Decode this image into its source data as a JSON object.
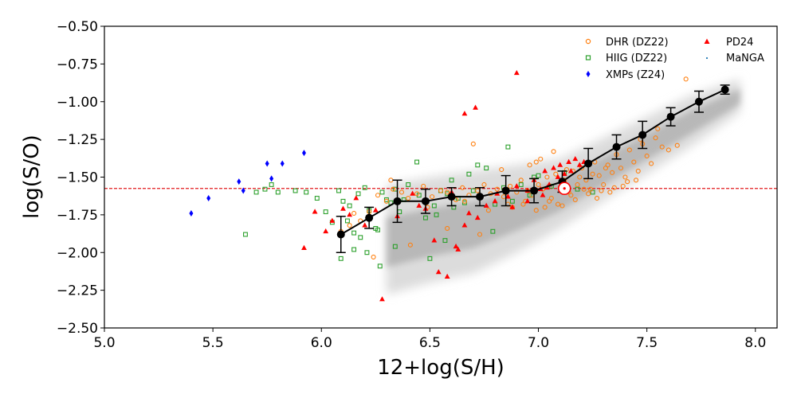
{
  "chart_data": {
    "type": "scatter",
    "xlabel": "12+log(S/H)",
    "ylabel": "log(S/O)",
    "xlim": [
      5.0,
      8.1
    ],
    "ylim": [
      -2.5,
      -0.5
    ],
    "xticks": [
      5.0,
      5.5,
      6.0,
      6.5,
      7.0,
      7.5,
      8.0
    ],
    "xtick_labels": [
      "5.0",
      "5.5",
      "6.0",
      "6.5",
      "7.0",
      "7.5",
      "8.0"
    ],
    "yticks": [
      -2.5,
      -2.25,
      -2.0,
      -1.75,
      -1.5,
      -1.25,
      -1.0,
      -0.75,
      -0.5
    ],
    "ytick_labels": [
      "−2.50",
      "−2.25",
      "−2.00",
      "−1.75",
      "−1.50",
      "−1.25",
      "−1.00",
      "−0.75",
      "−0.50"
    ],
    "reference_line": {
      "y": -1.575,
      "color": "#e31a1c",
      "style": "dashed"
    },
    "solar_symbol": {
      "x": 7.12,
      "y": -1.575
    },
    "legend": [
      {
        "label": "DHR (DZ22)",
        "marker": "open-circle",
        "color": "#ff7f0e"
      },
      {
        "label": "PD24",
        "marker": "triangle",
        "color": "#ff0000"
      },
      {
        "label": "HIIG (DZ22)",
        "marker": "open-square",
        "color": "#2ca02c"
      },
      {
        "label": "MaNGA",
        "marker": "dot",
        "color": "#1f77b4"
      },
      {
        "label": "XMPs (Z24)",
        "marker": "diamond",
        "color": "#0000ff"
      }
    ],
    "density_band": {
      "name": "MaNGA",
      "x": [
        6.3,
        6.5,
        6.7,
        6.9,
        7.1,
        7.3,
        7.5,
        7.7,
        7.93
      ],
      "y_low": [
        -2.28,
        -2.2,
        -2.14,
        -2.0,
        -1.84,
        -1.66,
        -1.48,
        -1.3,
        -1.07
      ],
      "y_high": [
        -1.55,
        -1.5,
        -1.46,
        -1.42,
        -1.38,
        -1.24,
        -1.1,
        -0.96,
        -0.85
      ]
    },
    "series": [
      {
        "name": "Binned median",
        "type": "line-errorbar",
        "color": "#000000",
        "x": [
          6.09,
          6.22,
          6.35,
          6.48,
          6.6,
          6.73,
          6.85,
          6.98,
          7.11,
          7.23,
          7.36,
          7.48,
          7.61,
          7.74,
          7.86
        ],
        "y": [
          -1.88,
          -1.77,
          -1.66,
          -1.66,
          -1.63,
          -1.63,
          -1.59,
          -1.59,
          -1.53,
          -1.41,
          -1.3,
          -1.22,
          -1.1,
          -1.0,
          -0.92
        ],
        "err": [
          0.12,
          0.07,
          0.14,
          0.08,
          0.06,
          0.06,
          0.1,
          0.08,
          0.07,
          0.1,
          0.08,
          0.09,
          0.06,
          0.07,
          0.03
        ]
      },
      {
        "name": "XMPs (Z24)",
        "x": [
          5.4,
          5.48,
          5.62,
          5.64,
          5.75,
          5.77,
          5.82,
          5.92
        ],
        "y": [
          -1.74,
          -1.64,
          -1.53,
          -1.59,
          -1.41,
          -1.51,
          -1.41,
          -1.34
        ]
      },
      {
        "name": "PD24",
        "x": [
          6.9,
          6.71,
          6.66,
          6.45,
          6.28,
          5.92,
          5.97,
          6.05,
          6.1,
          6.13,
          6.16,
          6.25,
          6.42,
          6.52,
          6.54,
          6.58,
          6.62,
          6.63,
          6.66,
          6.72,
          6.76,
          6.81,
          6.86,
          6.9,
          6.95,
          6.98,
          7.01,
          7.03,
          7.05,
          7.07,
          7.09,
          7.1,
          7.12,
          7.14,
          7.15,
          7.17,
          7.19,
          7.21,
          7.02,
          6.95,
          6.88,
          6.8,
          6.68,
          6.6,
          6.35,
          6.2,
          6.02,
          6.48,
          7.04
        ],
        "y": [
          -0.81,
          -1.04,
          -1.08,
          -1.69,
          -2.31,
          -1.97,
          -1.73,
          -1.79,
          -1.71,
          -1.75,
          -1.64,
          -1.72,
          -1.61,
          -1.92,
          -2.13,
          -2.16,
          -1.96,
          -1.98,
          -1.82,
          -1.77,
          -1.69,
          -1.61,
          -1.63,
          -1.56,
          -1.66,
          -1.52,
          -1.58,
          -1.46,
          -1.55,
          -1.44,
          -1.5,
          -1.42,
          -1.48,
          -1.4,
          -1.46,
          -1.38,
          -1.42,
          -1.4,
          -1.62,
          -1.59,
          -1.7,
          -1.66,
          -1.74,
          -1.6,
          -1.76,
          -1.82,
          -1.86,
          -1.71,
          -1.57
        ]
      },
      {
        "name": "HIIG (DZ22)",
        "x": [
          5.65,
          5.7,
          5.74,
          5.77,
          5.8,
          5.88,
          5.93,
          5.98,
          6.02,
          6.05,
          6.08,
          6.1,
          6.13,
          6.15,
          6.17,
          6.2,
          6.22,
          6.25,
          6.28,
          6.3,
          6.32,
          6.34,
          6.36,
          6.38,
          6.4,
          6.45,
          6.48,
          6.52,
          6.55,
          6.58,
          6.6,
          6.63,
          6.66,
          6.7,
          6.73,
          6.76,
          6.8,
          6.84,
          6.88,
          6.92,
          6.96,
          7.0,
          7.06,
          7.12,
          7.18,
          7.25,
          6.09,
          6.15,
          6.18,
          6.26,
          6.34,
          6.44,
          6.53,
          6.61,
          6.68,
          6.86,
          6.72,
          6.79,
          6.98,
          6.5,
          6.27,
          6.21,
          6.12,
          6.57
        ],
        "y": [
          -1.88,
          -1.6,
          -1.58,
          -1.55,
          -1.6,
          -1.59,
          -1.6,
          -1.64,
          -1.73,
          -1.8,
          -1.59,
          -1.66,
          -1.69,
          -1.87,
          -1.61,
          -1.57,
          -1.72,
          -1.84,
          -1.6,
          -1.65,
          -1.67,
          -1.58,
          -1.73,
          -1.65,
          -1.55,
          -1.62,
          -1.77,
          -1.69,
          -1.59,
          -1.61,
          -1.52,
          -1.64,
          -1.67,
          -1.59,
          -1.63,
          -1.44,
          -1.68,
          -1.57,
          -1.66,
          -1.55,
          -1.62,
          -1.49,
          -1.56,
          -1.47,
          -1.58,
          -1.6,
          -2.04,
          -1.98,
          -1.9,
          -1.85,
          -1.96,
          -1.4,
          -1.75,
          -1.7,
          -1.48,
          -1.3,
          -1.42,
          -1.86,
          -1.5,
          -2.04,
          -2.09,
          -2.0,
          -1.79,
          -1.92
        ]
      },
      {
        "name": "DHR (DZ22)",
        "x": [
          6.09,
          6.13,
          6.18,
          6.22,
          6.26,
          6.3,
          6.33,
          6.37,
          6.4,
          6.44,
          6.47,
          6.51,
          6.55,
          6.58,
          6.62,
          6.65,
          6.68,
          6.72,
          6.75,
          6.78,
          6.81,
          6.84,
          6.87,
          6.9,
          6.92,
          6.95,
          6.97,
          7.0,
          7.02,
          7.04,
          7.06,
          7.08,
          7.1,
          7.12,
          7.14,
          7.16,
          7.18,
          7.2,
          7.22,
          7.24,
          7.26,
          7.28,
          7.3,
          7.32,
          7.34,
          7.36,
          7.38,
          7.4,
          7.42,
          7.44,
          7.46,
          7.48,
          7.5,
          7.52,
          7.54,
          7.57,
          6.7,
          6.83,
          6.94,
          7.03,
          7.09,
          7.15,
          7.21,
          7.27,
          7.33,
          7.39,
          7.45,
          6.96,
          7.01,
          7.07,
          7.13,
          7.19,
          7.25,
          7.31,
          6.88,
          6.93,
          6.99,
          7.05,
          7.11,
          7.17,
          7.23,
          7.29,
          7.35,
          7.41,
          6.15,
          6.32,
          6.49,
          6.66,
          6.77,
          6.86,
          7.6,
          7.64,
          7.68,
          6.24,
          6.41,
          6.58,
          6.73,
          7.47,
          6.99,
          7.55
        ],
        "y": [
          -1.86,
          -1.82,
          -1.79,
          -1.73,
          -1.62,
          -1.66,
          -1.58,
          -1.6,
          -1.64,
          -1.61,
          -1.56,
          -1.63,
          -1.59,
          -1.6,
          -1.65,
          -1.57,
          -1.62,
          -1.59,
          -1.55,
          -1.61,
          -1.58,
          -1.63,
          -1.56,
          -1.6,
          -1.52,
          -1.59,
          -1.62,
          -1.55,
          -1.58,
          -1.5,
          -1.64,
          -1.48,
          -1.57,
          -1.52,
          -1.6,
          -1.46,
          -1.55,
          -1.44,
          -1.52,
          -1.58,
          -1.4,
          -1.49,
          -1.55,
          -1.42,
          -1.47,
          -1.35,
          -1.44,
          -1.5,
          -1.32,
          -1.4,
          -1.46,
          -1.28,
          -1.36,
          -1.41,
          -1.24,
          -1.3,
          -1.28,
          -1.45,
          -1.66,
          -1.7,
          -1.68,
          -1.62,
          -1.58,
          -1.64,
          -1.6,
          -1.56,
          -1.52,
          -1.42,
          -1.38,
          -1.33,
          -1.45,
          -1.5,
          -1.48,
          -1.44,
          -1.7,
          -1.68,
          -1.72,
          -1.66,
          -1.69,
          -1.65,
          -1.61,
          -1.59,
          -1.57,
          -1.53,
          -1.74,
          -1.52,
          -1.7,
          -1.66,
          -1.72,
          -1.68,
          -1.32,
          -1.29,
          -0.85,
          -2.03,
          -1.95,
          -1.84,
          -1.88,
          -1.25,
          -1.4,
          -1.18
        ]
      }
    ]
  }
}
